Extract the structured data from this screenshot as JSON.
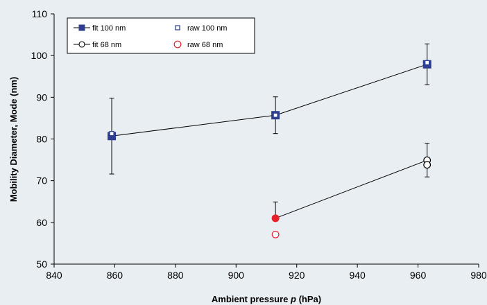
{
  "chart_data": {
    "type": "scatter",
    "title": "",
    "xlabel": "Ambient pressure p (hPa)",
    "xlabel_parts": {
      "before": "Ambient pressure ",
      "italic": "p",
      "after": " (hPa)"
    },
    "ylabel": "Mobility Diameter, Mode (nm)",
    "xlim": [
      840,
      980
    ],
    "ylim": [
      50,
      110
    ],
    "xticks": [
      840,
      860,
      880,
      900,
      920,
      940,
      960,
      980
    ],
    "yticks": [
      50,
      60,
      70,
      80,
      90,
      100,
      110
    ],
    "grid": false,
    "legend_position": "top-left",
    "series": [
      {
        "name": "fit 100 nm",
        "mode": "line+markers",
        "marker": "square-filled",
        "color": "#2e3f8f",
        "points": [
          {
            "x": 859,
            "y": 80.7,
            "err_low": 71.6,
            "err_high": 89.8
          },
          {
            "x": 913,
            "y": 85.7,
            "err_low": 81.3,
            "err_high": 90.1
          },
          {
            "x": 963,
            "y": 97.9,
            "err_low": 93.0,
            "err_high": 102.8
          }
        ]
      },
      {
        "name": "raw 100 nm",
        "mode": "markers",
        "marker": "square-open",
        "color": "#2e3f8f",
        "points": [
          {
            "x": 859,
            "y": 81.3
          },
          {
            "x": 913,
            "y": 85.7
          },
          {
            "x": 963,
            "y": 98.3
          }
        ]
      },
      {
        "name": "fit 68 nm",
        "mode": "line+markers",
        "marker": "circle-open",
        "color": "#000000",
        "points": [
          {
            "x": 913,
            "y": 61.0,
            "err_low": 61.0,
            "err_high": 64.9,
            "color": "#e8202a"
          },
          {
            "x": 963,
            "y": 74.9,
            "err_low": 70.9,
            "err_high": 79.0
          }
        ]
      },
      {
        "name": "raw 68 nm",
        "mode": "markers",
        "marker": "circle-open",
        "color": "#e8202a",
        "points": [
          {
            "x": 913,
            "y": 57.1
          },
          {
            "x": 963,
            "y": 73.8,
            "color": "#000000"
          }
        ]
      }
    ]
  }
}
